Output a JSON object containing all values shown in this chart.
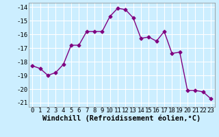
{
  "x": [
    0,
    1,
    2,
    3,
    4,
    5,
    6,
    7,
    8,
    9,
    10,
    11,
    12,
    13,
    14,
    15,
    16,
    17,
    18,
    19,
    20,
    21,
    22,
    23
  ],
  "y": [
    -18.3,
    -18.5,
    -19.0,
    -18.8,
    -18.2,
    -16.8,
    -16.8,
    -15.8,
    -15.8,
    -15.8,
    -14.7,
    -14.1,
    -14.2,
    -14.8,
    -16.3,
    -16.2,
    -16.5,
    -15.8,
    -17.4,
    -17.3,
    -20.1,
    -20.1,
    -20.2,
    -20.7
  ],
  "line_color": "#800080",
  "marker": "D",
  "markersize": 2.5,
  "linewidth": 1.0,
  "xlabel": "Windchill (Refroidissement éolien,°C)",
  "xlim": [
    -0.5,
    23.5
  ],
  "ylim": [
    -21.3,
    -13.7
  ],
  "yticks": [
    -14,
    -15,
    -16,
    -17,
    -18,
    -19,
    -20,
    -21
  ],
  "xticks": [
    0,
    1,
    2,
    3,
    4,
    5,
    6,
    7,
    8,
    9,
    10,
    11,
    12,
    13,
    14,
    15,
    16,
    17,
    18,
    19,
    20,
    21,
    22,
    23
  ],
  "background_color": "#cceeff",
  "grid_color": "#ffffff",
  "tick_label_fontsize": 6.5,
  "xlabel_fontsize": 7.5
}
